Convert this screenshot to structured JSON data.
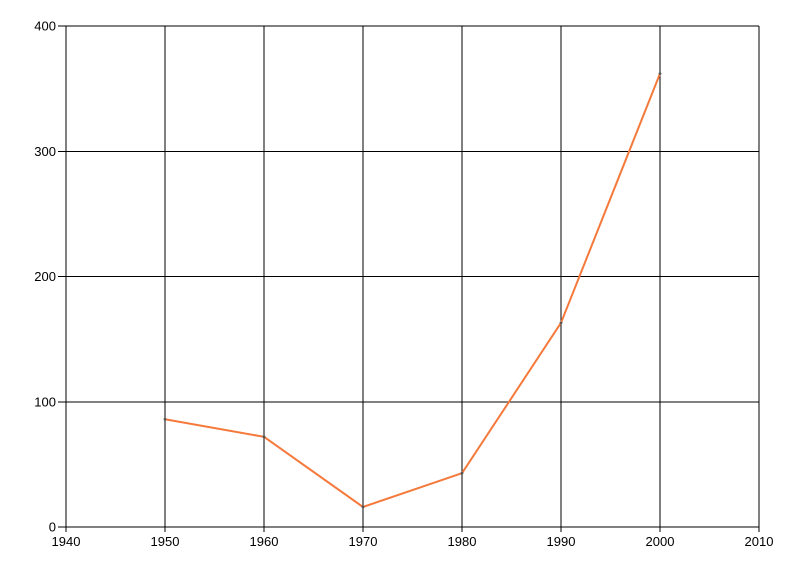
{
  "chart_data": {
    "type": "line",
    "x": [
      1950,
      1960,
      1970,
      1980,
      1990,
      2000
    ],
    "values": [
      86,
      72,
      16,
      43,
      163,
      362
    ],
    "xlim": [
      1940,
      2010
    ],
    "ylim": [
      0,
      400
    ],
    "x_ticks": [
      1940,
      1950,
      1960,
      1970,
      1980,
      1990,
      2000,
      2010
    ],
    "y_ticks": [
      0,
      100,
      200,
      300,
      400
    ],
    "grid": true,
    "legend": false,
    "colors": {
      "line": "#f5793b",
      "marker": "#555555",
      "grid": "#000000",
      "axis": "#000000",
      "tick_label": "#000000",
      "background": "#ffffff"
    }
  }
}
